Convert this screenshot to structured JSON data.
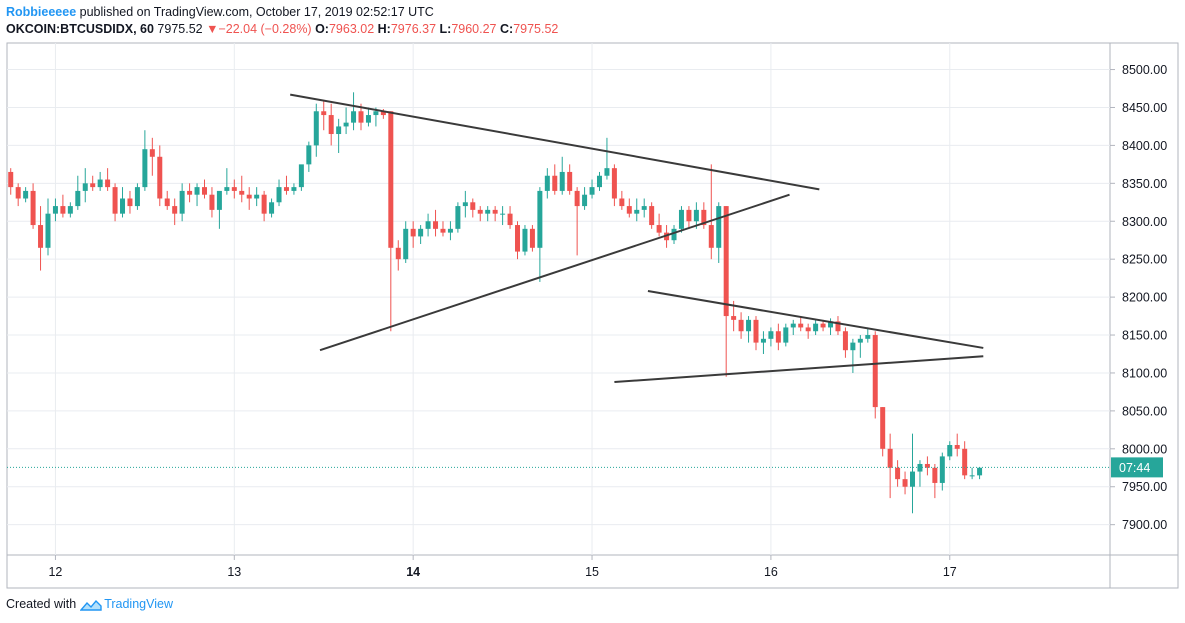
{
  "header": {
    "author": "Robbieeeee",
    "published": "published on TradingView.com, October 17, 2019 02:52:17 UTC",
    "symbol": "OKCOIN:BTCUSDIDX, 60",
    "last": "7975.52",
    "change": "−22.04 (−0.28%)",
    "o_label": "O:",
    "o_value": "7963.02",
    "h_label": "H:",
    "h_value": "7976.37",
    "l_label": "L:",
    "l_value": "7960.27",
    "c_label": "C:",
    "c_value": "7975.52"
  },
  "footer": {
    "created_with": "Created with",
    "brand": "TradingView"
  },
  "price_tag": {
    "label": "07:44",
    "value": 7975.52
  },
  "colors": {
    "up": "#26a69a",
    "down": "#ef5350",
    "grid": "#e9ecf0",
    "line": "#3a3a3a",
    "tag": "#26a69a"
  },
  "chart_data": {
    "type": "candlestick",
    "interval": "60",
    "y_ticks": [
      7900,
      7950,
      8000,
      8050,
      8100,
      8150,
      8200,
      8250,
      8300,
      8350,
      8400,
      8450,
      8500
    ],
    "y_tick_labels": [
      "7900.00",
      "7950.00",
      "8000.00",
      "8050.00",
      "8100.00",
      "8150.00",
      "8200.00",
      "8250.00",
      "8300.00",
      "8350.00",
      "8400.00",
      "8450.00",
      "8500.00"
    ],
    "ylim": [
      7860,
      8535
    ],
    "x_ticks": [
      {
        "label": "12",
        "pos": 7.0,
        "bold": false
      },
      {
        "label": "13",
        "pos": 31.0,
        "bold": false
      },
      {
        "label": "14",
        "pos": 55.0,
        "bold": true
      },
      {
        "label": "15",
        "pos": 79.0,
        "bold": false
      },
      {
        "label": "16",
        "pos": 103.0,
        "bold": false
      },
      {
        "label": "17",
        "pos": 127.0,
        "bold": false
      }
    ],
    "x_range": [
      0.5,
      148.5
    ],
    "candles": [],
    "trendlines": [
      {
        "name": "upper-triangle-resistance",
        "x1": 38.5,
        "y1": 8467,
        "x2": 109.5,
        "y2": 8342
      },
      {
        "name": "lower-triangle-support",
        "x1": 42.5,
        "y1": 8130,
        "x2": 105.5,
        "y2": 8335
      },
      {
        "name": "pennant-upper",
        "x1": 86.5,
        "y1": 8208,
        "x2": 131.5,
        "y2": 8133
      },
      {
        "name": "pennant-lower",
        "x1": 82.0,
        "y1": 8088,
        "x2": 131.5,
        "y2": 8122
      }
    ]
  }
}
